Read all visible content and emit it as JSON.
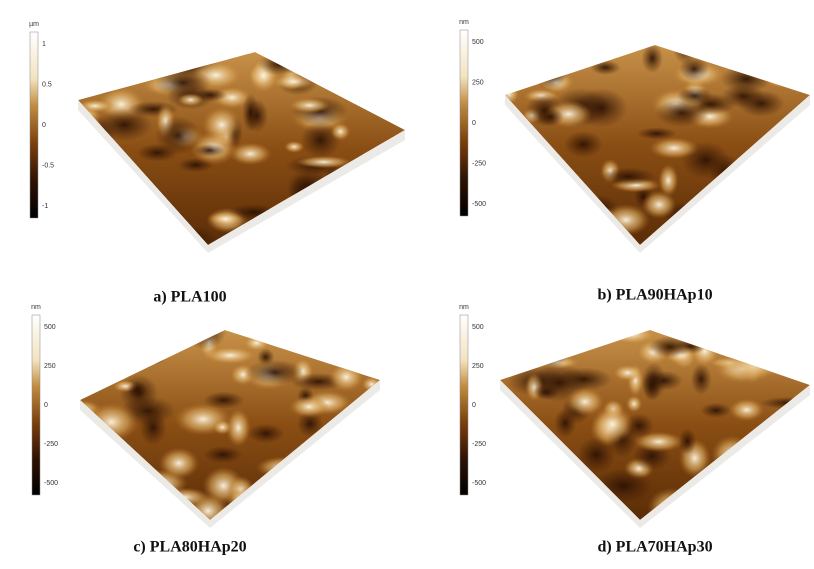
{
  "panels": [
    {
      "caption": "a) PLA100",
      "colorbar": {
        "unit": "µm",
        "ticks": [
          "1",
          "0.5",
          "0",
          "-0.5",
          "-1"
        ]
      }
    },
    {
      "caption": "b) PLA90HAp10",
      "colorbar": {
        "unit": "nm",
        "ticks": [
          "500",
          "250",
          "0",
          "-250",
          "-500"
        ]
      }
    },
    {
      "caption": "c) PLA80HAp20",
      "colorbar": {
        "unit": "nm",
        "ticks": [
          "500",
          "250",
          "0",
          "-250",
          "-500"
        ]
      }
    },
    {
      "caption": "d) PLA70HAp30",
      "colorbar": {
        "unit": "nm",
        "ticks": [
          "500",
          "250",
          "0",
          "-250",
          "-500"
        ]
      }
    }
  ]
}
